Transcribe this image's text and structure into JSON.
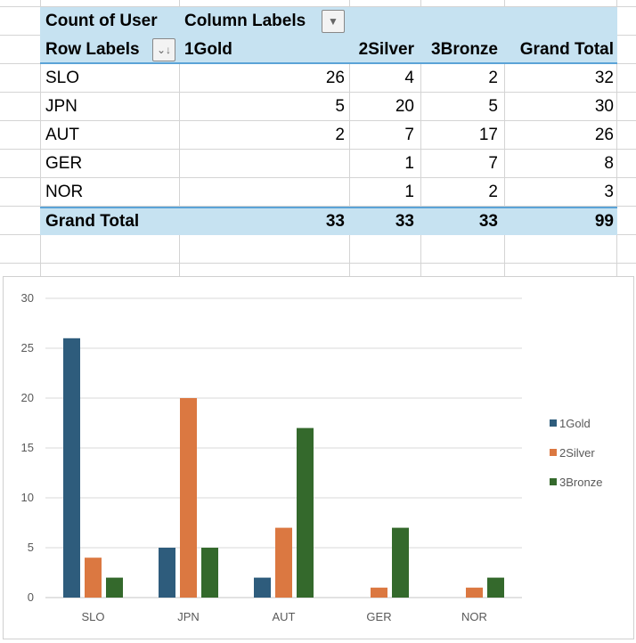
{
  "pivot": {
    "value_field": "Count of User",
    "column_labels": "Column Labels",
    "row_labels": "Row Labels",
    "columns": [
      "1Gold",
      "2Silver",
      "3Bronze",
      "Grand Total"
    ],
    "rows": [
      {
        "label": "SLO",
        "values": [
          "26",
          "4",
          "2",
          "32"
        ]
      },
      {
        "label": "JPN",
        "values": [
          "5",
          "20",
          "5",
          "30"
        ]
      },
      {
        "label": "AUT",
        "values": [
          "2",
          "7",
          "17",
          "26"
        ]
      },
      {
        "label": "GER",
        "values": [
          "",
          "1",
          "7",
          "8"
        ]
      },
      {
        "label": "NOR",
        "values": [
          "",
          "1",
          "2",
          "3"
        ]
      }
    ],
    "grand_total": {
      "label": "Grand Total",
      "values": [
        "33",
        "33",
        "33",
        "99"
      ]
    }
  },
  "chart_data": {
    "type": "bar",
    "title": "",
    "categories": [
      "SLO",
      "JPN",
      "AUT",
      "GER",
      "NOR"
    ],
    "series": [
      {
        "name": "1Gold",
        "values": [
          26,
          5,
          2,
          null,
          null
        ],
        "color": "#2e5c7c"
      },
      {
        "name": "2Silver",
        "values": [
          4,
          20,
          7,
          1,
          1
        ],
        "color": "#db7841"
      },
      {
        "name": "3Bronze",
        "values": [
          2,
          5,
          17,
          7,
          2
        ],
        "color": "#34692c"
      }
    ],
    "ylim": [
      0,
      30
    ],
    "yticks": [
      0,
      5,
      10,
      15,
      20,
      25,
      30
    ],
    "grid": true,
    "legend": "right"
  }
}
